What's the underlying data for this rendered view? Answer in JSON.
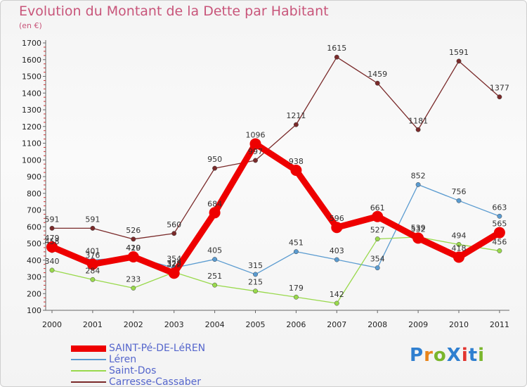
{
  "title": "Evolution du Montant de la Dette par Habitant",
  "unit": "(en €)",
  "logo": "ProXiti",
  "logo_colors": [
    "#2f7fd0",
    "#e8841a",
    "#7ab62c",
    "#2f7fd0",
    "#e2342f",
    "#2f7fd0",
    "#7ab62c"
  ],
  "chart_data": {
    "type": "line",
    "x": [
      "2000",
      "2001",
      "2002",
      "2003",
      "2004",
      "2005",
      "2006",
      "2007",
      "2008",
      "2009",
      "2010",
      "2011"
    ],
    "ylim": [
      100,
      1700
    ],
    "yticks": [
      100,
      200,
      300,
      400,
      500,
      600,
      700,
      800,
      900,
      1000,
      1100,
      1200,
      1300,
      1400,
      1500,
      1600,
      1700
    ],
    "grid": false,
    "legend_position": "bottom-left",
    "series": [
      {
        "name": "SAINT-Pé-DE-LéREN",
        "color": "#ee0000",
        "width": 9,
        "marker": 8,
        "values": [
          479,
          376,
          420,
          322,
          684,
          1096,
          938,
          596,
          661,
          532,
          418,
          565
        ]
      },
      {
        "name": "Léren",
        "color": "#5a9bd0",
        "width": 1.3,
        "marker": 3.2,
        "values": [
          458,
          401,
          419,
          354,
          405,
          315,
          451,
          403,
          354,
          852,
          756,
          663
        ]
      },
      {
        "name": "Saint-Dos",
        "color": "#99d94c",
        "width": 1.3,
        "marker": 3.2,
        "values": [
          340,
          284,
          233,
          328,
          251,
          215,
          179,
          142,
          527,
          539,
          494,
          456
        ]
      },
      {
        "name": "Carresse-Cassaber",
        "color": "#7a2a2a",
        "width": 1.3,
        "marker": 3.2,
        "values": [
          591,
          591,
          526,
          560,
          950,
          997,
          1211,
          1615,
          1459,
          1181,
          1591,
          1377
        ]
      }
    ]
  }
}
